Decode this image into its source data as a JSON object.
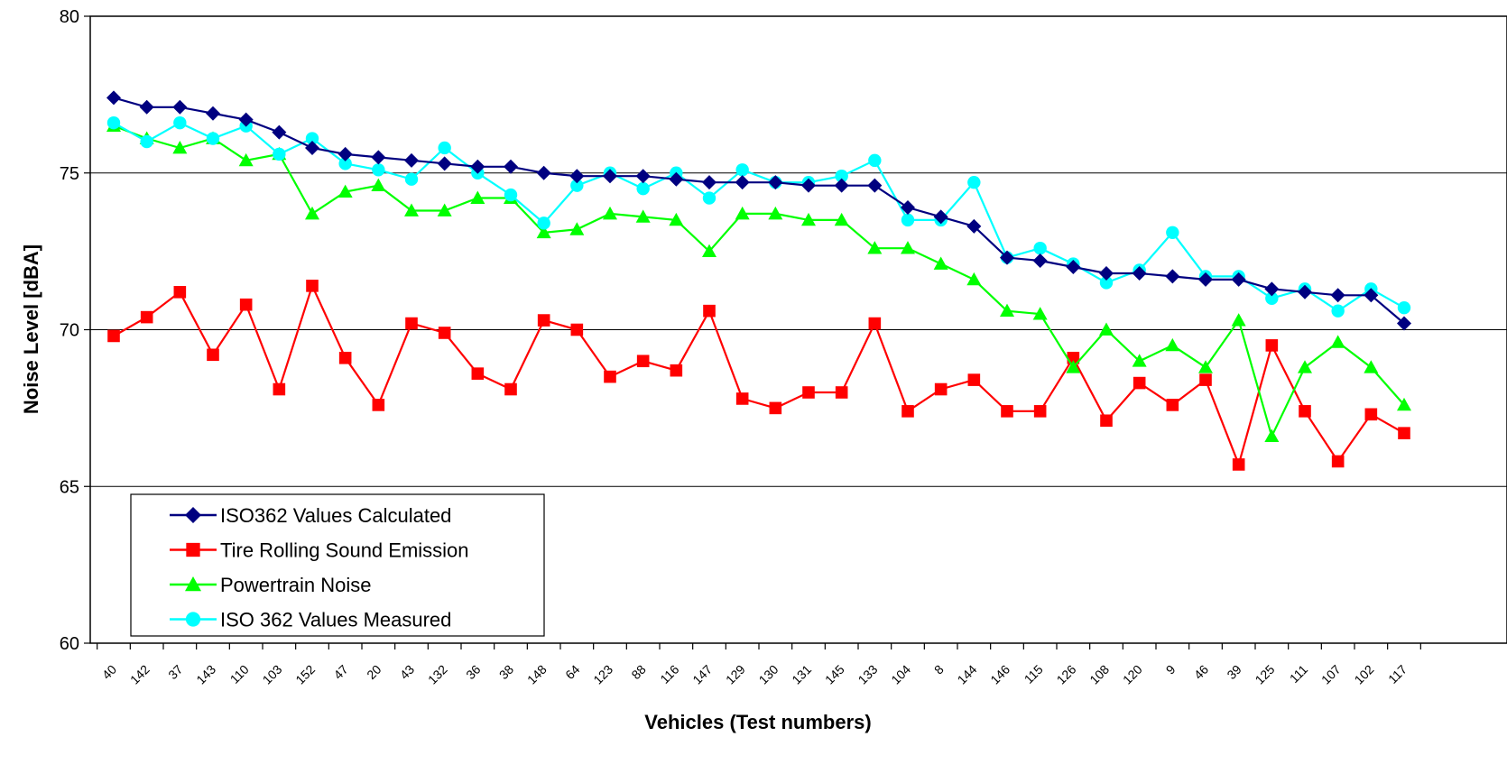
{
  "chart_data": {
    "type": "line",
    "title": "",
    "xlabel": "Vehicles (Test numbers)",
    "ylabel": "Noise Level [dBA]",
    "ylim": [
      60,
      80
    ],
    "yticks": [
      "60",
      "65",
      "70",
      "75",
      "80"
    ],
    "grid": "horizontal",
    "legend_position": "bottom-left",
    "categories": [
      "40",
      "142",
      "37",
      "143",
      "110",
      "103",
      "152",
      "47",
      "20",
      "43",
      "132",
      "36",
      "38",
      "148",
      "64",
      "123",
      "88",
      "116",
      "147",
      "129",
      "130",
      "131",
      "145",
      "133",
      "104",
      "8",
      "144",
      "146",
      "115",
      "126",
      "108",
      "120",
      "9",
      "46",
      "39",
      "125",
      "111",
      "107",
      "102",
      "117"
    ],
    "series": [
      {
        "name": "ISO362 Values Calculated",
        "color": "#000080",
        "marker": "diamond",
        "values": [
          77.4,
          77.1,
          77.1,
          76.9,
          76.7,
          76.3,
          75.8,
          75.6,
          75.5,
          75.4,
          75.3,
          75.2,
          75.2,
          75.0,
          74.9,
          74.9,
          74.9,
          74.8,
          74.7,
          74.7,
          74.7,
          74.6,
          74.6,
          74.6,
          73.9,
          73.6,
          73.3,
          72.3,
          72.2,
          72.0,
          71.8,
          71.8,
          71.7,
          71.6,
          71.6,
          71.3,
          71.2,
          71.1,
          71.1,
          70.2
        ]
      },
      {
        "name": "Tire Rolling Sound Emission",
        "color": "#ff0000",
        "marker": "square",
        "values": [
          69.8,
          70.4,
          71.2,
          69.2,
          70.8,
          68.1,
          71.4,
          69.1,
          67.6,
          70.2,
          69.9,
          68.6,
          68.1,
          70.3,
          70.0,
          68.5,
          69.0,
          68.7,
          70.6,
          67.8,
          67.5,
          68.0,
          68.0,
          70.2,
          67.4,
          68.1,
          68.4,
          67.4,
          67.4,
          69.1,
          67.1,
          68.3,
          67.6,
          68.4,
          65.7,
          69.5,
          67.4,
          65.8,
          67.3,
          66.7
        ]
      },
      {
        "name": "Powertrain Noise",
        "color": "#00ff00",
        "marker": "triangle",
        "values": [
          76.5,
          76.1,
          75.8,
          76.1,
          75.4,
          75.6,
          73.7,
          74.4,
          74.6,
          73.8,
          73.8,
          74.2,
          74.2,
          73.1,
          73.2,
          73.7,
          73.6,
          73.5,
          72.5,
          73.7,
          73.7,
          73.5,
          73.5,
          72.6,
          72.6,
          72.1,
          71.6,
          70.6,
          70.5,
          68.8,
          70.0,
          69.0,
          69.5,
          68.8,
          70.3,
          66.6,
          68.8,
          69.6,
          68.8,
          67.6
        ]
      },
      {
        "name": "ISO 362 Values Measured",
        "color": "#00ffff",
        "marker": "circle",
        "values": [
          76.6,
          76.0,
          76.6,
          76.1,
          76.5,
          75.6,
          76.1,
          75.3,
          75.1,
          74.8,
          75.8,
          75.0,
          74.3,
          73.4,
          74.6,
          75.0,
          74.5,
          75.0,
          74.2,
          75.1,
          74.7,
          74.7,
          74.9,
          75.4,
          73.5,
          73.5,
          74.7,
          72.3,
          72.6,
          72.1,
          71.5,
          71.9,
          73.1,
          71.7,
          71.7,
          71.0,
          71.3,
          70.6,
          71.3,
          70.7
        ]
      }
    ]
  }
}
